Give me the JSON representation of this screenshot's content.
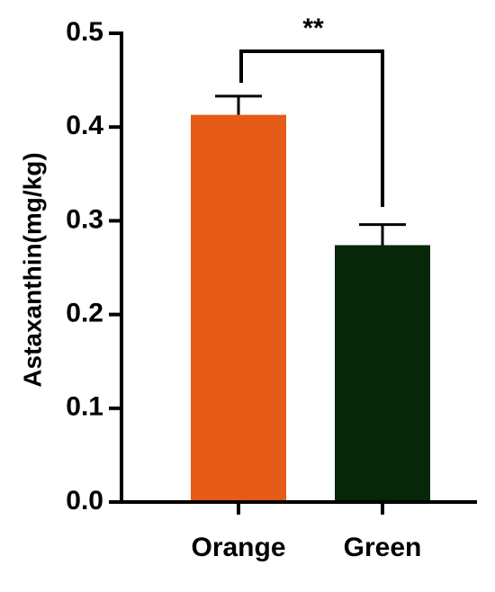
{
  "chart_data": {
    "type": "bar",
    "y_label": "Astaxanthin(mg/kg)",
    "categories": [
      "Orange",
      "Green"
    ],
    "values": [
      0.413,
      0.274
    ],
    "errors": [
      0.02,
      0.022
    ],
    "colors": [
      "#e55b17",
      "#062808"
    ],
    "ylim": [
      0,
      0.5
    ],
    "yticks": [
      {
        "value": 0,
        "label": "0.0"
      },
      0.1,
      0.2,
      0.3,
      0.4,
      0.5
    ],
    "annotation": "**"
  }
}
